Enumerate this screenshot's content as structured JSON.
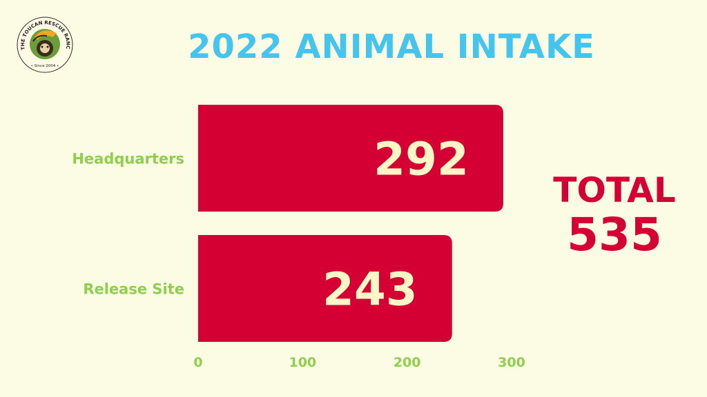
{
  "logo": {
    "ring_text": "THE TOUCAN RESCUE RANCH",
    "since": "• Since 2004 •"
  },
  "summary": {
    "total_label": "TOTAL",
    "total_value": "535"
  },
  "colors": {
    "bar": "#d40033",
    "bar_label": "#fbf6c6",
    "category": "#8ed04e",
    "tick": "#8ed04e",
    "title": "#45c4ee",
    "background": "#fcfbe3"
  },
  "chart_data": {
    "type": "bar",
    "orientation": "horizontal",
    "title": "2022 ANIMAL INTAKE",
    "categories": [
      "Headquarters",
      "Release Site"
    ],
    "values": [
      292,
      243
    ],
    "data_labels": [
      "292",
      "243"
    ],
    "xlim": [
      0,
      300
    ],
    "xticks": [
      0,
      100,
      200,
      300
    ],
    "grid": false,
    "legend": "none"
  }
}
